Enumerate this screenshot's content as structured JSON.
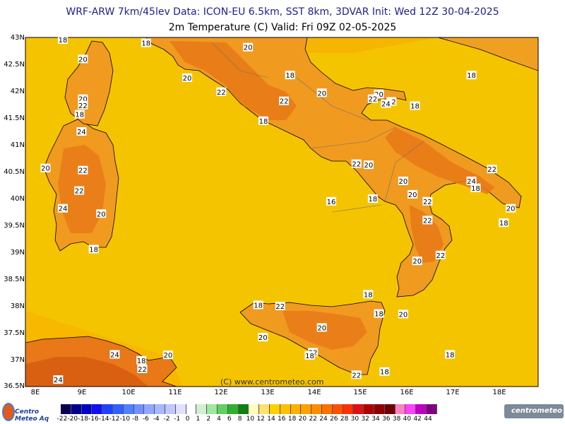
{
  "header": {
    "line1": "WRF-ARW 7km/45lev   Data: ICON-EU 6.5km, SST 8km, 3DVAR   Init: Wed 12Z 30-04-2025",
    "line2": "2m Temperature (C)  Valid: Fri 09Z 02-05-2025"
  },
  "axes": {
    "lat_labels": [
      "43N",
      "42.5N",
      "42N",
      "41.5N",
      "41N",
      "40.5N",
      "40N",
      "39.5N",
      "39N",
      "38.5N",
      "38N",
      "37.5N",
      "37N",
      "36.5N"
    ],
    "lon_labels": [
      "8E",
      "9E",
      "10E",
      "11E",
      "12E",
      "13E",
      "14E",
      "15E",
      "16E",
      "17E",
      "18E"
    ]
  },
  "contour_labels": [
    {
      "t": "18",
      "lon": 8.72,
      "lat": 42.96
    },
    {
      "t": "18",
      "lon": 10.5,
      "lat": 42.9
    },
    {
      "t": "20",
      "lon": 12.68,
      "lat": 42.82
    },
    {
      "t": "20",
      "lon": 9.15,
      "lat": 42.6
    },
    {
      "t": "18",
      "lon": 13.58,
      "lat": 42.3
    },
    {
      "t": "18",
      "lon": 17.46,
      "lat": 42.3
    },
    {
      "t": "20",
      "lon": 11.38,
      "lat": 42.25
    },
    {
      "t": "22",
      "lon": 12.11,
      "lat": 41.99
    },
    {
      "t": "20",
      "lon": 14.26,
      "lat": 41.97
    },
    {
      "t": "20",
      "lon": 15.48,
      "lat": 41.95
    },
    {
      "t": "22",
      "lon": 15.35,
      "lat": 41.86
    },
    {
      "t": "22",
      "lon": 15.75,
      "lat": 41.81
    },
    {
      "t": "22",
      "lon": 13.45,
      "lat": 41.82
    },
    {
      "t": "24",
      "lon": 15.63,
      "lat": 41.77
    },
    {
      "t": "18",
      "lon": 16.25,
      "lat": 41.73
    },
    {
      "t": "20",
      "lon": 9.15,
      "lat": 41.86
    },
    {
      "t": "22",
      "lon": 9.15,
      "lat": 41.74
    },
    {
      "t": "18",
      "lon": 9.08,
      "lat": 41.57
    },
    {
      "t": "18",
      "lon": 13.01,
      "lat": 41.45
    },
    {
      "t": "24",
      "lon": 9.12,
      "lat": 41.25
    },
    {
      "t": "22",
      "lon": 15.0,
      "lat": 40.65
    },
    {
      "t": "20",
      "lon": 15.26,
      "lat": 40.63
    },
    {
      "t": "22",
      "lon": 17.9,
      "lat": 40.55
    },
    {
      "t": "22",
      "lon": 9.15,
      "lat": 40.53
    },
    {
      "t": "20",
      "lon": 8.35,
      "lat": 40.57
    },
    {
      "t": "20",
      "lon": 16.0,
      "lat": 40.33
    },
    {
      "t": "24",
      "lon": 17.46,
      "lat": 40.33
    },
    {
      "t": "18",
      "lon": 17.55,
      "lat": 40.2
    },
    {
      "t": "22",
      "lon": 9.07,
      "lat": 40.15
    },
    {
      "t": "20",
      "lon": 16.2,
      "lat": 40.08
    },
    {
      "t": "18",
      "lon": 15.35,
      "lat": 40.0
    },
    {
      "t": "16",
      "lon": 14.46,
      "lat": 39.95
    },
    {
      "t": "22",
      "lon": 16.52,
      "lat": 39.95
    },
    {
      "t": "20",
      "lon": 18.3,
      "lat": 39.82
    },
    {
      "t": "24",
      "lon": 8.72,
      "lat": 39.82
    },
    {
      "t": "20",
      "lon": 9.54,
      "lat": 39.72
    },
    {
      "t": "22",
      "lon": 16.52,
      "lat": 39.6
    },
    {
      "t": "18",
      "lon": 18.15,
      "lat": 39.55
    },
    {
      "t": "18",
      "lon": 9.38,
      "lat": 39.06
    },
    {
      "t": "22",
      "lon": 16.8,
      "lat": 38.95
    },
    {
      "t": "20",
      "lon": 16.3,
      "lat": 38.84
    },
    {
      "t": "18",
      "lon": 15.25,
      "lat": 38.22
    },
    {
      "t": "18",
      "lon": 12.9,
      "lat": 38.02
    },
    {
      "t": "22",
      "lon": 13.37,
      "lat": 38.0
    },
    {
      "t": "18",
      "lon": 15.48,
      "lat": 37.86
    },
    {
      "t": "20",
      "lon": 16.0,
      "lat": 37.85
    },
    {
      "t": "20",
      "lon": 14.26,
      "lat": 37.6
    },
    {
      "t": "20",
      "lon": 13.0,
      "lat": 37.42
    },
    {
      "t": "22",
      "lon": 14.07,
      "lat": 37.14
    },
    {
      "t": "18",
      "lon": 14.0,
      "lat": 37.08
    },
    {
      "t": "24",
      "lon": 9.83,
      "lat": 37.1
    },
    {
      "t": "20",
      "lon": 10.97,
      "lat": 37.09
    },
    {
      "t": "18",
      "lon": 17.0,
      "lat": 37.1
    },
    {
      "t": "18",
      "lon": 10.4,
      "lat": 36.99
    },
    {
      "t": "22",
      "lon": 10.42,
      "lat": 36.83
    },
    {
      "t": "18",
      "lon": 15.6,
      "lat": 36.78
    },
    {
      "t": "22",
      "lon": 15.0,
      "lat": 36.72
    },
    {
      "t": "24",
      "lon": 8.62,
      "lat": 36.63
    }
  ],
  "copyright": "(C) www.centrometeo.com",
  "legend": {
    "labels": [
      "-22",
      "-20",
      "-18",
      "-16",
      "-14",
      "-12",
      "-10",
      "-8",
      "-6",
      "-4",
      "-2",
      "-1",
      "0",
      "1",
      "2",
      "4",
      "6",
      "8",
      "10",
      "12",
      "14",
      "16",
      "18",
      "20",
      "22",
      "24",
      "26",
      "28",
      "30",
      "32",
      "34",
      "36",
      "38",
      "40",
      "42",
      "44"
    ],
    "colors": [
      "#0a0050",
      "#000090",
      "#0000c8",
      "#1010f0",
      "#2040ff",
      "#3060ff",
      "#5080ff",
      "#7090ff",
      "#90a8ff",
      "#a8b8ff",
      "#c0c8ff",
      "#e0e0ff",
      "#ffffff",
      "#d0f0d0",
      "#a0e8a0",
      "#60d060",
      "#30b030",
      "#108010",
      "#ffffc0",
      "#ffe070",
      "#ffd000",
      "#ffc000",
      "#ffb000",
      "#ffa000",
      "#ff8c00",
      "#ff7000",
      "#ff5000",
      "#ff3000",
      "#e01010",
      "#b00000",
      "#900000",
      "#700000",
      "#ff80c0",
      "#ff40ff",
      "#c000c0",
      "#800080"
    ]
  },
  "branding": {
    "left": "Centro Meteo Aq",
    "right": "centrometeo"
  },
  "map_colors": {
    "sea": "#f5c400",
    "land": "#f0a020",
    "warm": "#e87818",
    "hot": "#d65a10",
    "coast": "#000000",
    "border": "#707070"
  }
}
